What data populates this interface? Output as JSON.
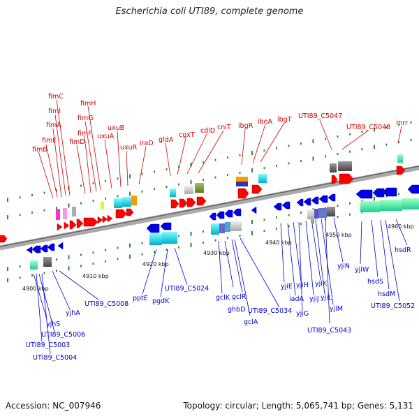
{
  "title": "Escherichia coli UTI89, complete genome",
  "footer": {
    "accession": "Accession: NC_007946",
    "topology": "Topology: circular; Length: 5,065,741 bp; Genes: 5,131"
  },
  "colors": {
    "forward_gene": "#ff0000",
    "reverse_gene": "#0000ee",
    "forward_label": "#cc0000",
    "reverse_label": "#0000cc",
    "backbone": "#999999",
    "tick": "#2e8b2e"
  },
  "ticks": [
    {
      "label": "4900 kbp"
    },
    {
      "label": "4910 kbp"
    },
    {
      "label": "4920 kbp"
    },
    {
      "label": "4930 kbp"
    },
    {
      "label": "4940 kbp"
    },
    {
      "label": "4950 kbp"
    },
    {
      "label": "4960 kbp"
    }
  ],
  "forward_labels": [
    "fimB",
    "fimE",
    "fimA",
    "fimI",
    "fimC",
    "fimD",
    "fimF",
    "fimG",
    "fimH",
    "uxuA",
    "uxuB",
    "uxuR",
    "iraD",
    "gldA",
    "cgxT",
    "cdlD",
    "cniT",
    "ibgR",
    "ibeA",
    "ibgT",
    "UTI89_C5047",
    "UTI89_C5048",
    "mrr"
  ],
  "reverse_labels": [
    "yjhS",
    "UTI89_C5006",
    "UTI89_C5003",
    "UTI89_C5004",
    "yjhA",
    "UTI89_C5008",
    "pptE",
    "pgdK",
    "UTI89_C5024",
    "gclK",
    "ghbD",
    "gclR",
    "gclA",
    "UTI89_C5034",
    "yjiE",
    "iadA",
    "yjiH",
    "yjiG",
    "yjiJ",
    "yjiK",
    "yjiL",
    "yjiM",
    "UTI89_C5043",
    "yjiN",
    "yjiW",
    "hsdS",
    "hsdM",
    "UTI89_C5052",
    "hsdR"
  ]
}
